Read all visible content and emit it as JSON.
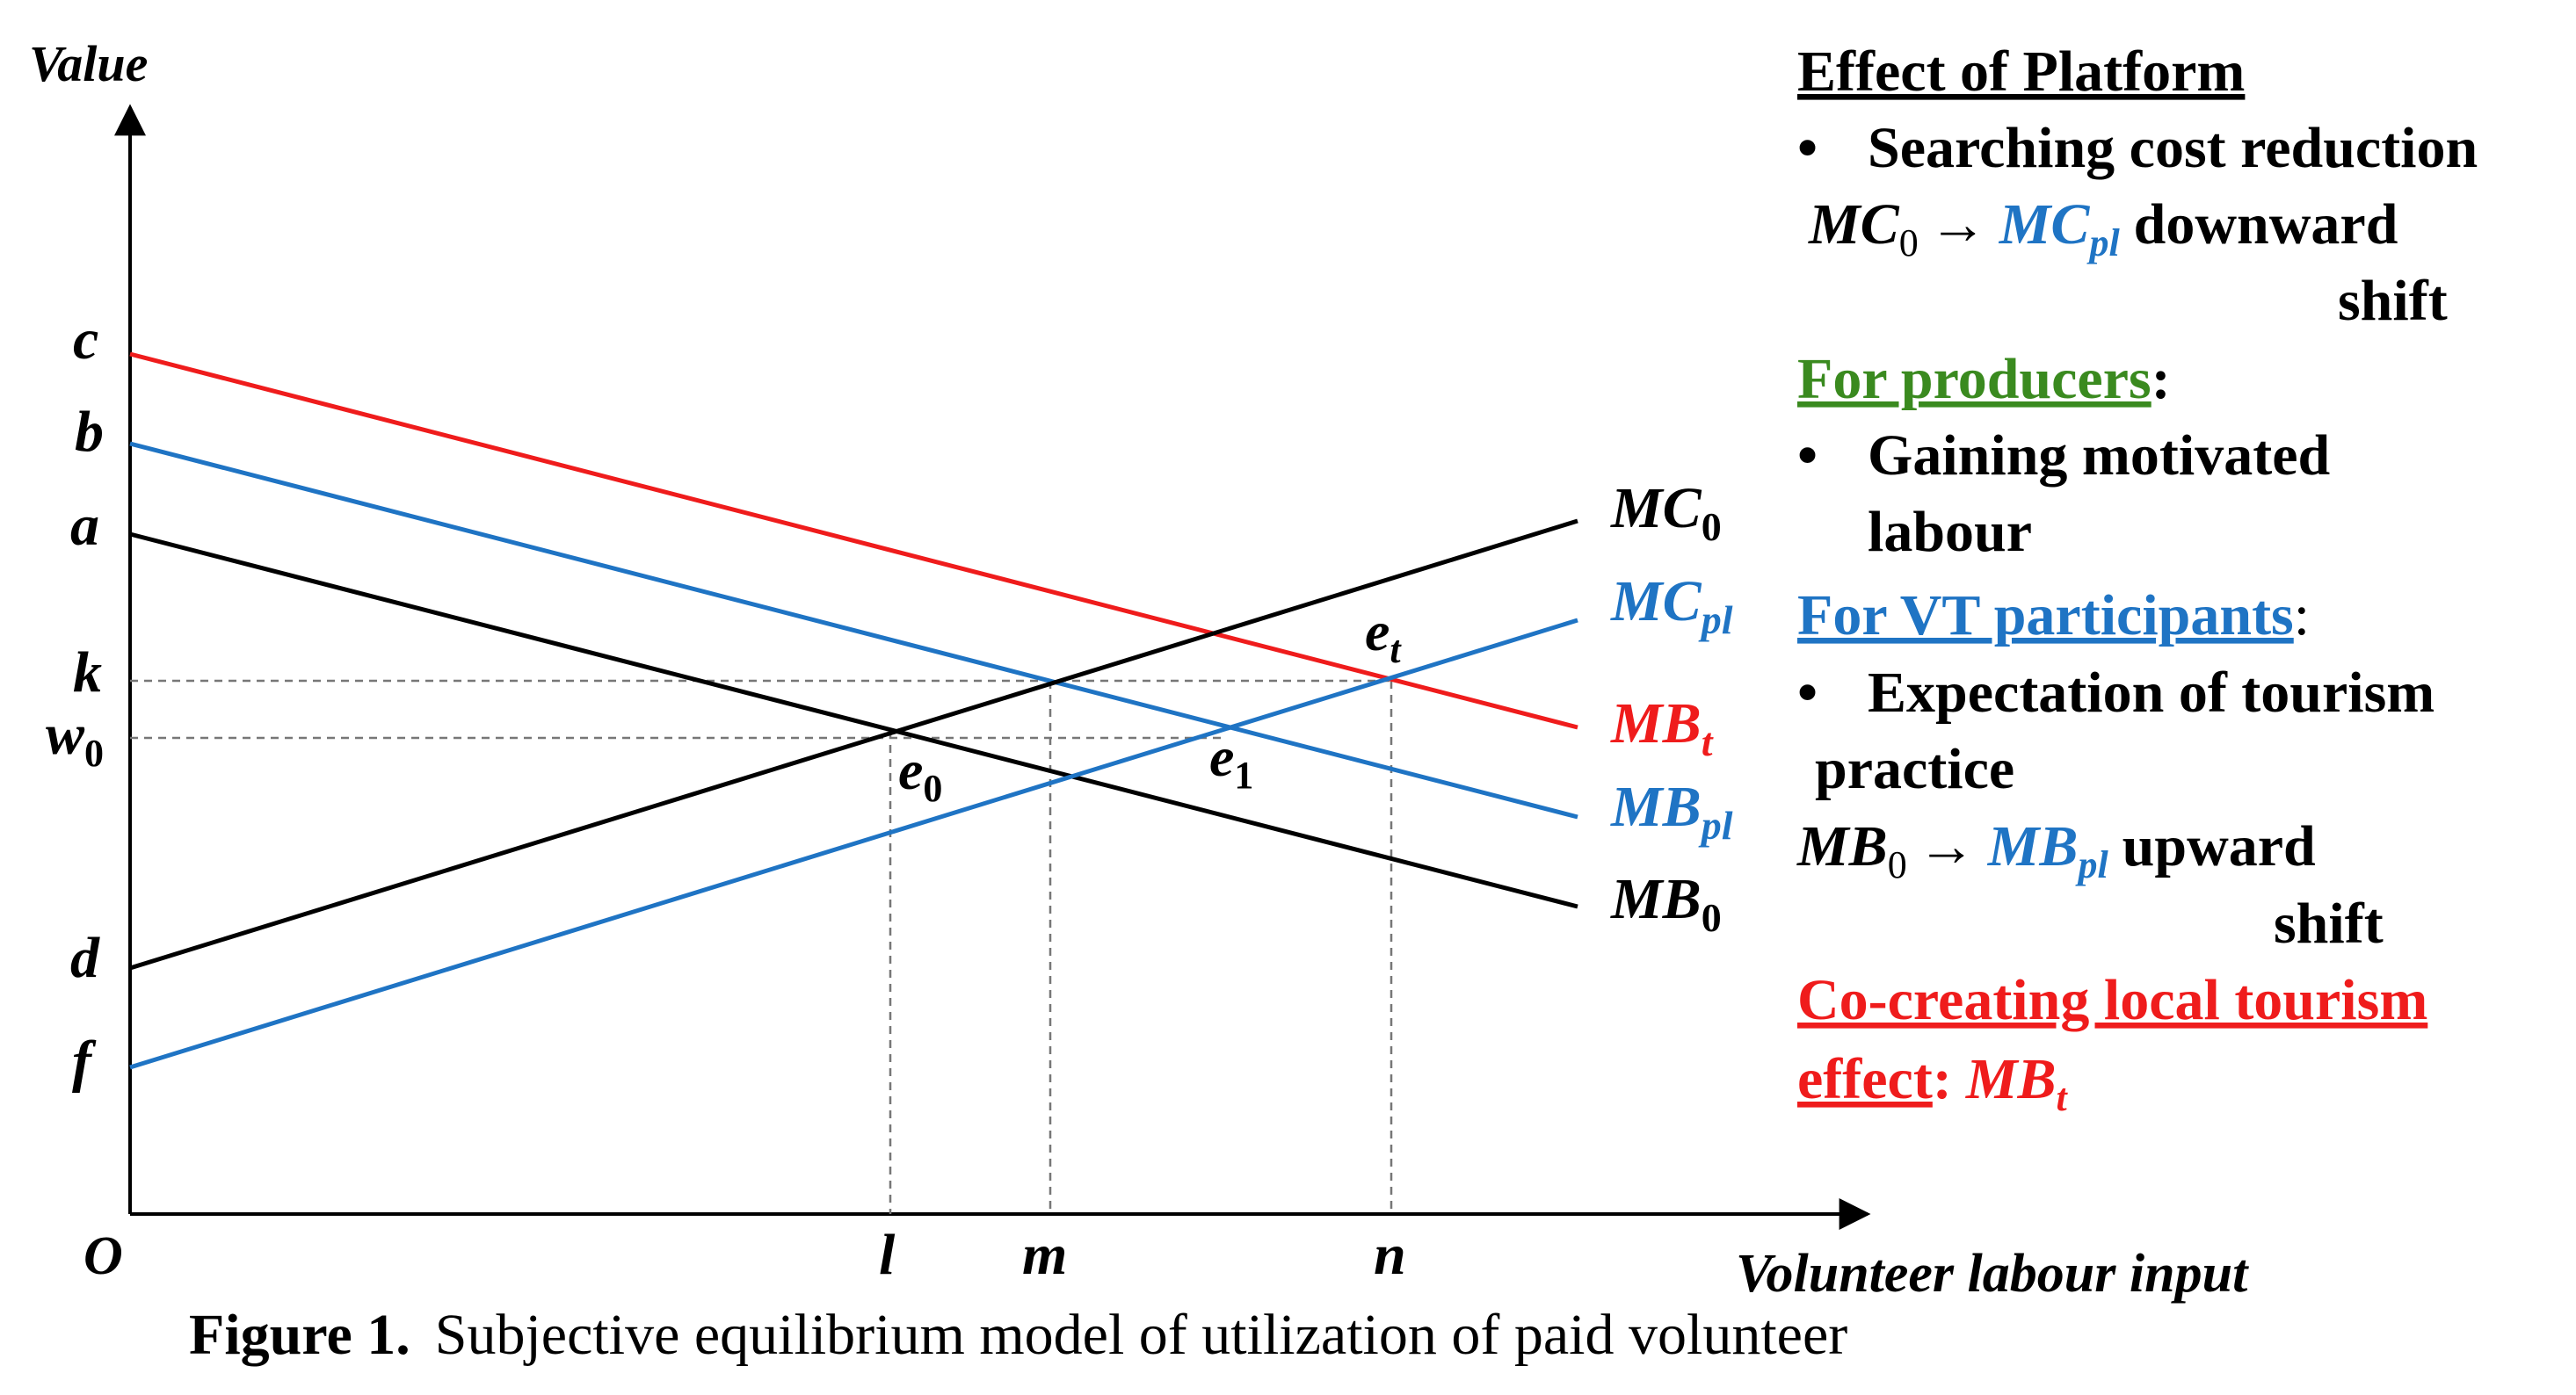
{
  "axes": {
    "y_title": "Value",
    "x_title": "Volunteer labour input",
    "origin_label": "O",
    "y_ticks": {
      "c": "c",
      "b": "b",
      "a": "a",
      "k": "k",
      "w": "w",
      "w_sub": "0",
      "d": "d",
      "f": "f"
    },
    "x_ticks": {
      "l": "l",
      "m": "m",
      "n": "n"
    }
  },
  "curves": {
    "mc0": {
      "base": "MC",
      "sub": "0",
      "color": "#000000"
    },
    "mcpl": {
      "base": "MC",
      "sub": "pl",
      "color": "#1f74c4"
    },
    "mbt": {
      "base": "MB",
      "sub": "t",
      "color": "#ef1c1c"
    },
    "mbpl": {
      "base": "MB",
      "sub": "pl",
      "color": "#1f74c4"
    },
    "mb0": {
      "base": "MB",
      "sub": "0",
      "color": "#000000"
    }
  },
  "points": {
    "e0": {
      "base": "e",
      "sub": "0"
    },
    "e1": {
      "base": "e",
      "sub": "1"
    },
    "et": {
      "base": "e",
      "sub": "t"
    }
  },
  "panel": {
    "title": "Effect of Platform",
    "bullet_symbol": "•",
    "search_bullet": "Searching cost reduction",
    "mc_shift": {
      "from_base": "MC",
      "from_sub": "0",
      "arrow": "→",
      "to_base": "MC",
      "to_sub": "pl",
      "text1": "downward",
      "text2": "shift"
    },
    "producers_heading": "For producers",
    "producers_colon": ":",
    "producers_bullet_line1": "Gaining motivated",
    "producers_bullet_line2": "labour",
    "vt_heading": "For VT participants",
    "vt_colon": ":",
    "vt_bullet_line1": "Expectation of tourism",
    "vt_bullet_line2": "practice",
    "mb_shift": {
      "from_base": "MB",
      "from_sub": "0",
      "arrow": "→",
      "to_base": "MB",
      "to_sub": "pl",
      "text1": "upward",
      "text2": "shift"
    },
    "cocreate_line1": "Co-creating local tourism",
    "cocreate_line2": "effect",
    "cocreate_colon": ":",
    "cocreate_term": {
      "base": "MB",
      "sub": "t"
    }
  },
  "colors": {
    "black": "#000000",
    "blue": "#1f74c4",
    "red": "#ef1c1c",
    "green": "#3a8a1f",
    "guide": "#777777"
  },
  "caption": {
    "label": "Figure 1.",
    "text": "Subjective equilibrium model of utilization of paid volunteer"
  }
}
